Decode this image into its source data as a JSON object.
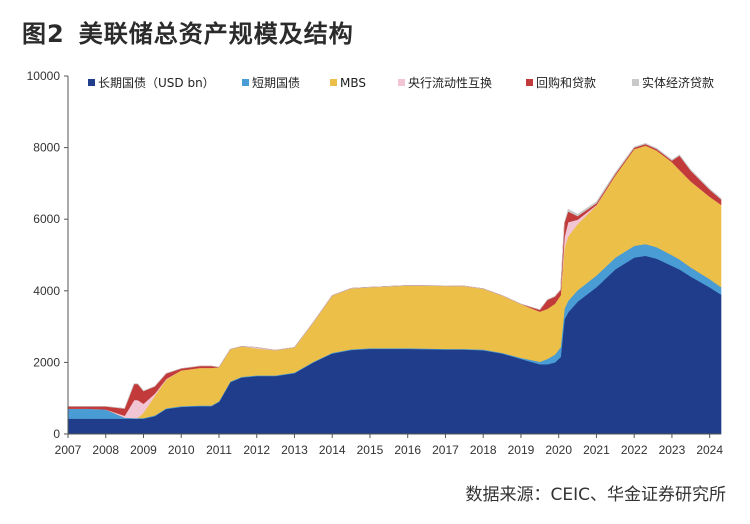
{
  "figure": {
    "number": "图2",
    "title": "美联储总资产规模及结构",
    "source": "数据来源：CEIC、华金证券研究所"
  },
  "chart_data": {
    "type": "area",
    "stacked": true,
    "x_unit": "year",
    "xlim": [
      2007,
      2024.3
    ],
    "ylim": [
      0,
      10000
    ],
    "y_ticks": [
      0,
      2000,
      4000,
      6000,
      8000,
      10000
    ],
    "x_ticks": [
      2007,
      2008,
      2009,
      2010,
      2011,
      2012,
      2013,
      2014,
      2015,
      2016,
      2017,
      2018,
      2019,
      2020,
      2021,
      2022,
      2023,
      2024
    ],
    "legend_position": "top",
    "grid": false,
    "x": [
      2007.0,
      2007.5,
      2008.0,
      2008.5,
      2008.75,
      2008.85,
      2009.0,
      2009.3,
      2009.6,
      2010.0,
      2010.5,
      2010.8,
      2011.0,
      2011.3,
      2011.6,
      2012.0,
      2012.5,
      2013.0,
      2013.5,
      2014.0,
      2014.5,
      2015.0,
      2016.0,
      2017.0,
      2017.5,
      2018.0,
      2018.5,
      2019.0,
      2019.5,
      2019.7,
      2019.9,
      2020.05,
      2020.15,
      2020.25,
      2020.5,
      2021.0,
      2021.5,
      2022.0,
      2022.3,
      2022.6,
      2023.0,
      2023.2,
      2023.5,
      2024.0,
      2024.3
    ],
    "series": [
      {
        "name": "长期国债（USD bn）",
        "color": "#1f3d8a",
        "values": [
          430,
          430,
          430,
          430,
          430,
          430,
          430,
          500,
          700,
          760,
          780,
          780,
          900,
          1450,
          1580,
          1620,
          1620,
          1700,
          2000,
          2250,
          2350,
          2380,
          2380,
          2360,
          2360,
          2340,
          2250,
          2100,
          1950,
          1950,
          2000,
          2150,
          3200,
          3400,
          3700,
          4100,
          4600,
          4930,
          4980,
          4900,
          4700,
          4600,
          4400,
          4100,
          3900
        ]
      },
      {
        "name": "短期国债",
        "color": "#4a9cd4",
        "values": [
          280,
          280,
          260,
          30,
          20,
          20,
          20,
          20,
          20,
          20,
          20,
          20,
          20,
          20,
          20,
          20,
          20,
          20,
          20,
          20,
          20,
          20,
          20,
          20,
          20,
          20,
          20,
          30,
          70,
          150,
          220,
          280,
          300,
          320,
          320,
          330,
          330,
          330,
          330,
          320,
          300,
          280,
          260,
          230,
          210
        ]
      },
      {
        "name": "MBS",
        "color": "#ecbf48",
        "values": [
          0,
          0,
          0,
          0,
          0,
          0,
          150,
          550,
          800,
          1000,
          1050,
          1050,
          950,
          900,
          850,
          750,
          700,
          700,
          1100,
          1600,
          1700,
          1700,
          1750,
          1760,
          1750,
          1700,
          1600,
          1500,
          1400,
          1400,
          1420,
          1450,
          1700,
          1800,
          1850,
          1950,
          2300,
          2700,
          2750,
          2700,
          2600,
          2500,
          2400,
          2300,
          2300
        ]
      },
      {
        "name": "央行流动性互换",
        "color": "#f1c5d3",
        "values": [
          0,
          0,
          0,
          50,
          500,
          500,
          250,
          60,
          20,
          0,
          0,
          0,
          0,
          0,
          0,
          30,
          0,
          0,
          0,
          0,
          0,
          0,
          0,
          0,
          0,
          0,
          0,
          0,
          0,
          0,
          0,
          0,
          300,
          400,
          120,
          20,
          0,
          0,
          0,
          0,
          0,
          0,
          0,
          0,
          0
        ]
      },
      {
        "name": "回购和贷款",
        "color": "#c23a3a",
        "values": [
          60,
          60,
          80,
          200,
          450,
          450,
          350,
          200,
          150,
          50,
          50,
          50,
          0,
          0,
          0,
          0,
          0,
          0,
          0,
          0,
          0,
          0,
          0,
          0,
          0,
          0,
          0,
          0,
          50,
          250,
          200,
          150,
          400,
          300,
          100,
          50,
          40,
          40,
          40,
          40,
          40,
          400,
          300,
          200,
          150
        ]
      },
      {
        "name": "实体经济贷款",
        "color": "#c9c9c9",
        "values": [
          0,
          0,
          0,
          0,
          0,
          0,
          0,
          0,
          0,
          0,
          0,
          0,
          0,
          0,
          0,
          0,
          0,
          0,
          0,
          0,
          0,
          0,
          0,
          0,
          0,
          0,
          0,
          0,
          0,
          0,
          0,
          0,
          0,
          60,
          50,
          40,
          30,
          20,
          20,
          20,
          20,
          20,
          20,
          20,
          20
        ]
      }
    ]
  }
}
